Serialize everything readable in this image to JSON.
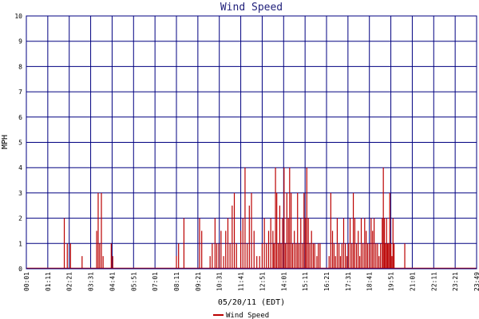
{
  "chart_data": {
    "type": "bar",
    "title": "Wind Speed",
    "xlabel": "05/20/11 (EDT)",
    "ylabel": "MPH",
    "ylim": [
      0,
      10
    ],
    "yticks": [
      "0",
      "1",
      "2",
      "3",
      "4",
      "5",
      "6",
      "7",
      "8",
      "9",
      "10"
    ],
    "xticks": [
      "00:01",
      "01:11",
      "02:21",
      "03:31",
      "04:41",
      "05:51",
      "07:01",
      "08:11",
      "09:21",
      "10:31",
      "11:41",
      "12:51",
      "14:01",
      "15:11",
      "16:21",
      "17:31",
      "18:41",
      "19:51",
      "21:01",
      "22:11",
      "23:21",
      "23:49"
    ],
    "grid": true,
    "legend_position": "bottom",
    "colors": {
      "series": "#bb0000",
      "grid": "#000080",
      "title": "#1f1f7a"
    },
    "series": [
      {
        "name": "Wind Speed",
        "points": [
          [
            1.77,
            2
          ],
          [
            1.91,
            1
          ],
          [
            2.06,
            1
          ],
          [
            2.6,
            0.5
          ],
          [
            3.28,
            1.5
          ],
          [
            3.35,
            3
          ],
          [
            3.42,
            1
          ],
          [
            3.5,
            3
          ],
          [
            3.58,
            0.5
          ],
          [
            3.96,
            1
          ],
          [
            4.03,
            0.5
          ],
          [
            7.0,
            0.5
          ],
          [
            7.1,
            1
          ],
          [
            7.35,
            2
          ],
          [
            8.08,
            2
          ],
          [
            8.18,
            1.5
          ],
          [
            8.57,
            0.5
          ],
          [
            8.67,
            1
          ],
          [
            8.8,
            2
          ],
          [
            8.88,
            1
          ],
          [
            8.98,
            1
          ],
          [
            9.08,
            1.5
          ],
          [
            9.2,
            0.5
          ],
          [
            9.3,
            1.5
          ],
          [
            9.4,
            2
          ],
          [
            9.5,
            1
          ],
          [
            9.6,
            2.5
          ],
          [
            9.7,
            3
          ],
          [
            9.8,
            1
          ],
          [
            10.0,
            1.5
          ],
          [
            10.1,
            2
          ],
          [
            10.2,
            4
          ],
          [
            10.3,
            1
          ],
          [
            10.4,
            2.5
          ],
          [
            10.5,
            3
          ],
          [
            10.62,
            1.5
          ],
          [
            10.75,
            0.5
          ],
          [
            10.88,
            0.5
          ],
          [
            11.0,
            1
          ],
          [
            11.1,
            2
          ],
          [
            11.2,
            1
          ],
          [
            11.3,
            1.5
          ],
          [
            11.4,
            2
          ],
          [
            11.5,
            1.5
          ],
          [
            11.55,
            1
          ],
          [
            11.62,
            4
          ],
          [
            11.68,
            3
          ],
          [
            11.75,
            1
          ],
          [
            11.82,
            2.5
          ],
          [
            11.88,
            1
          ],
          [
            11.95,
            2
          ],
          [
            12.02,
            4
          ],
          [
            12.08,
            1
          ],
          [
            12.15,
            3
          ],
          [
            12.22,
            2
          ],
          [
            12.28,
            4
          ],
          [
            12.35,
            3
          ],
          [
            12.42,
            1
          ],
          [
            12.5,
            1.5
          ],
          [
            12.58,
            1
          ],
          [
            12.65,
            3
          ],
          [
            12.72,
            1
          ],
          [
            12.8,
            2
          ],
          [
            12.88,
            1
          ],
          [
            12.95,
            3
          ],
          [
            13.02,
            2
          ],
          [
            13.08,
            4
          ],
          [
            13.15,
            2
          ],
          [
            13.22,
            1
          ],
          [
            13.3,
            1.5
          ],
          [
            13.38,
            1
          ],
          [
            13.45,
            1
          ],
          [
            13.55,
            0.5
          ],
          [
            13.62,
            1
          ],
          [
            13.7,
            1
          ],
          [
            14.12,
            0.5
          ],
          [
            14.2,
            3
          ],
          [
            14.28,
            1.5
          ],
          [
            14.35,
            1
          ],
          [
            14.42,
            0.5
          ],
          [
            14.5,
            2
          ],
          [
            14.58,
            1
          ],
          [
            14.65,
            0.5
          ],
          [
            14.72,
            1
          ],
          [
            14.8,
            2
          ],
          [
            14.88,
            1
          ],
          [
            14.95,
            0.5
          ],
          [
            15.02,
            1
          ],
          [
            15.1,
            2
          ],
          [
            15.18,
            1
          ],
          [
            15.25,
            3
          ],
          [
            15.32,
            2
          ],
          [
            15.4,
            1
          ],
          [
            15.48,
            1.5
          ],
          [
            15.55,
            0.5
          ],
          [
            15.62,
            2
          ],
          [
            15.7,
            1
          ],
          [
            15.78,
            2
          ],
          [
            15.85,
            1.5
          ],
          [
            15.92,
            1
          ],
          [
            16.0,
            1
          ],
          [
            16.08,
            2
          ],
          [
            16.15,
            1.5
          ],
          [
            16.22,
            2
          ],
          [
            16.3,
            1
          ],
          [
            16.38,
            1
          ],
          [
            16.45,
            0.5
          ],
          [
            16.52,
            1
          ],
          [
            16.6,
            2
          ],
          [
            16.65,
            4
          ],
          [
            16.7,
            2
          ],
          [
            16.75,
            1
          ],
          [
            16.8,
            2
          ],
          [
            16.85,
            1
          ],
          [
            16.9,
            1
          ],
          [
            16.95,
            3
          ],
          [
            17.0,
            1
          ],
          [
            17.05,
            0.5
          ],
          [
            17.1,
            2
          ],
          [
            17.15,
            1
          ],
          [
            17.65,
            1
          ]
        ]
      }
    ]
  }
}
